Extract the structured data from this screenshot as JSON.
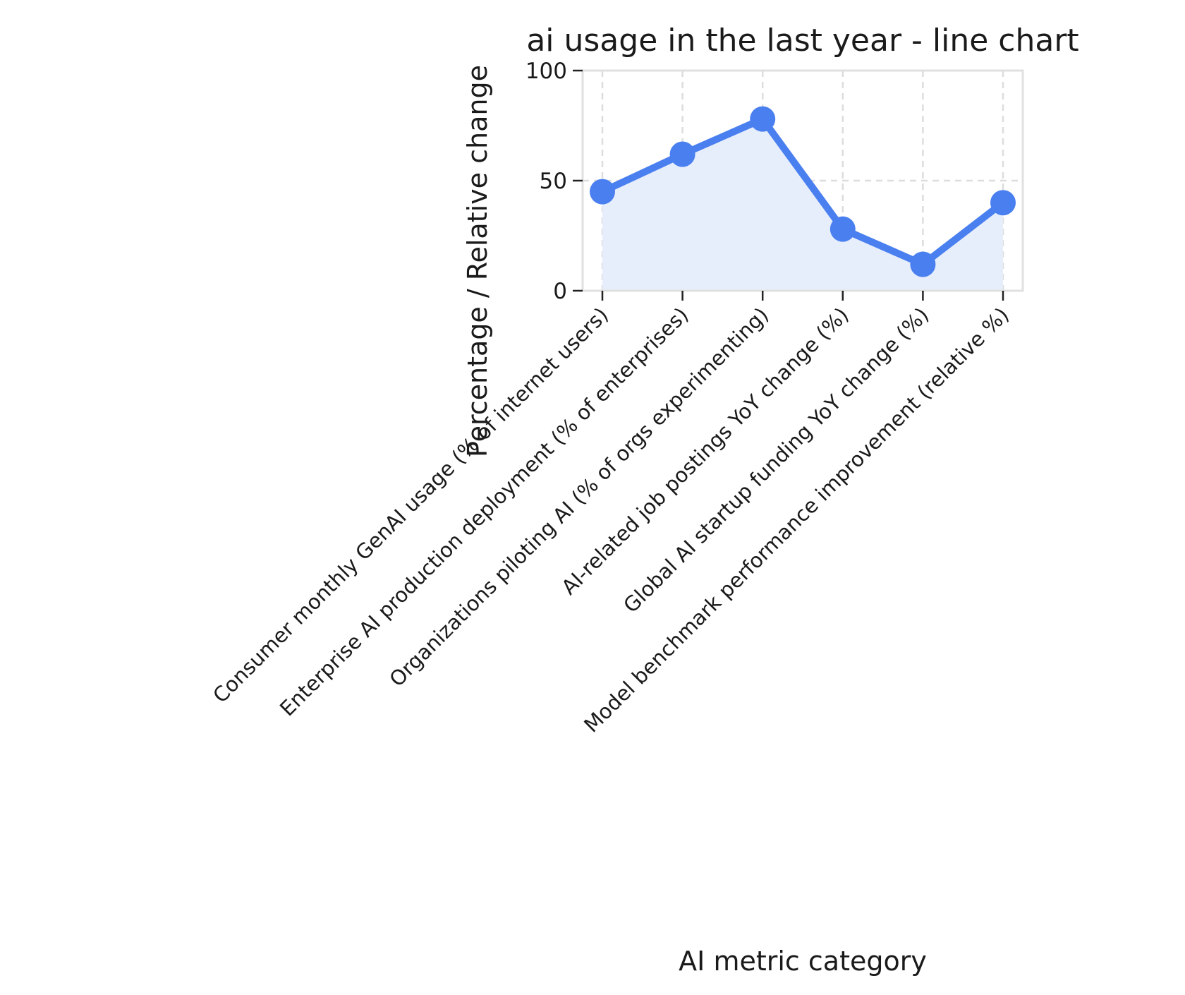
{
  "chart_data": {
    "type": "line",
    "title": "ai usage in the last year - line chart",
    "xlabel": "AI metric category",
    "ylabel": "Percentage / Relative change",
    "categories": [
      "Consumer monthly GenAI usage (% of internet users)",
      "Enterprise AI production deployment (% of enterprises)",
      "Organizations piloting AI (% of orgs experimenting)",
      "AI-related job postings YoY change (%)",
      "Global AI startup funding YoY change (%)",
      "Model benchmark performance improvement (relative %)"
    ],
    "series": [
      {
        "values": [
          45,
          62,
          78,
          28,
          12,
          40
        ]
      }
    ],
    "ylim": [
      0,
      100
    ],
    "yticks": [
      0,
      50,
      100
    ],
    "grid": true,
    "fill_under_line": true,
    "colors": {
      "line": "#4a7ff0",
      "fill": "#e6eefc",
      "grid": "#dddddd",
      "frame": "#e0e0e0"
    }
  }
}
